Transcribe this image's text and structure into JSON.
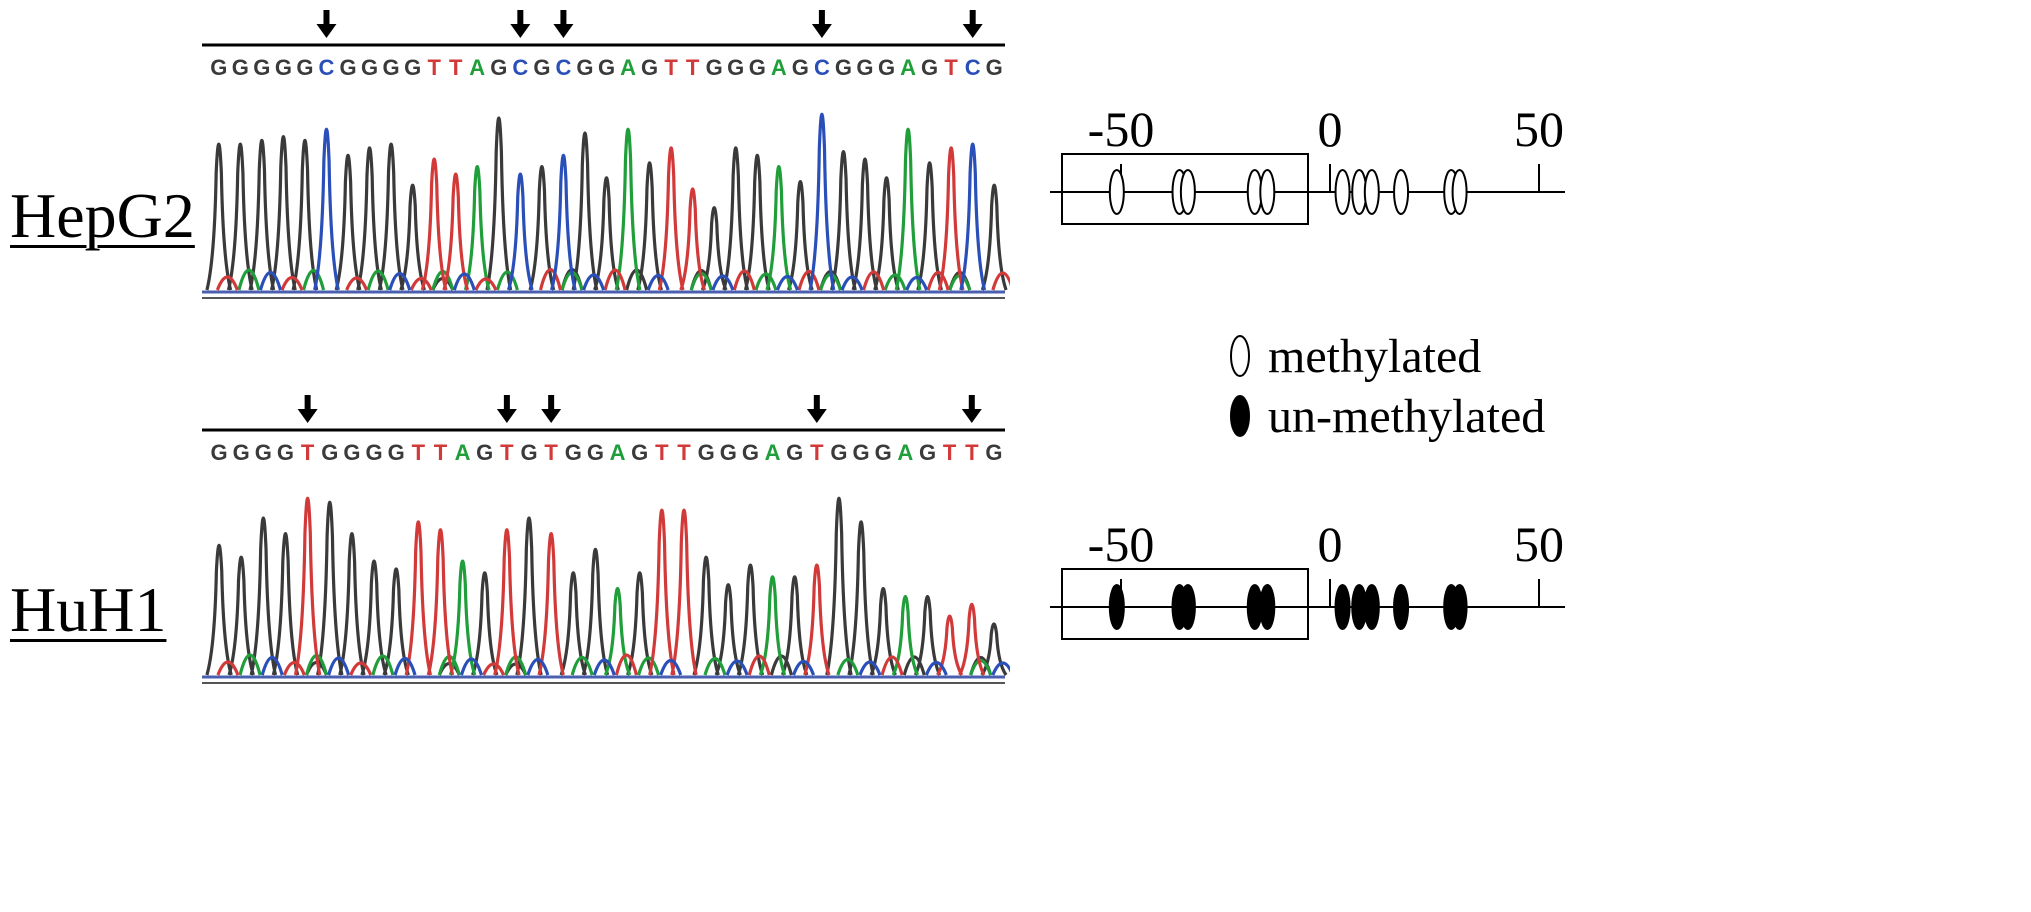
{
  "colors": {
    "G": "#3a3a3a",
    "A": "#1f9e3a",
    "T": "#d23a3a",
    "C": "#2a4fb8",
    "axis": "#000000"
  },
  "panels": [
    {
      "name": "HepG2",
      "bases": [
        "G",
        "G",
        "G",
        "G",
        "G",
        "C",
        "G",
        "G",
        "G",
        "G",
        "T",
        "T",
        "A",
        "G",
        "C",
        "G",
        "C",
        "G",
        "G",
        "A",
        "G",
        "T",
        "T",
        "G",
        "G",
        "G",
        "A",
        "G",
        "C",
        "G",
        "G",
        "G",
        "A",
        "G",
        "T",
        "C",
        "G"
      ],
      "arrow_positions": [
        5,
        14,
        16,
        28,
        35
      ],
      "peak_heights": [
        0.78,
        0.78,
        0.8,
        0.82,
        0.8,
        0.86,
        0.72,
        0.76,
        0.78,
        0.56,
        0.7,
        0.62,
        0.66,
        0.92,
        0.62,
        0.66,
        0.72,
        0.84,
        0.6,
        0.86,
        0.68,
        0.76,
        0.54,
        0.44,
        0.76,
        0.72,
        0.66,
        0.58,
        0.94,
        0.74,
        0.7,
        0.6,
        0.86,
        0.68,
        0.76,
        0.78,
        0.56
      ],
      "methylated": true
    },
    {
      "name": "HuH1",
      "bases": [
        "G",
        "G",
        "G",
        "G",
        "T",
        "G",
        "G",
        "G",
        "G",
        "T",
        "T",
        "A",
        "G",
        "T",
        "G",
        "T",
        "G",
        "G",
        "A",
        "G",
        "T",
        "T",
        "G",
        "G",
        "G",
        "A",
        "G",
        "T",
        "G",
        "G",
        "G",
        "A",
        "G",
        "T",
        "T",
        "G"
      ],
      "arrow_positions": [
        4,
        13,
        15,
        27,
        34
      ],
      "peak_heights": [
        0.66,
        0.6,
        0.8,
        0.72,
        0.9,
        0.88,
        0.72,
        0.58,
        0.54,
        0.78,
        0.74,
        0.58,
        0.52,
        0.74,
        0.8,
        0.72,
        0.52,
        0.64,
        0.44,
        0.52,
        0.84,
        0.84,
        0.6,
        0.46,
        0.56,
        0.5,
        0.5,
        0.56,
        0.9,
        0.78,
        0.44,
        0.4,
        0.4,
        0.3,
        0.36,
        0.26
      ],
      "methylated": false
    }
  ],
  "methylation_map": {
    "axis_labels": [
      "-50",
      "0",
      "50"
    ],
    "cpg_sites": [
      -51,
      -36,
      -34,
      -18,
      -15,
      3,
      7,
      10,
      17,
      29,
      31
    ]
  },
  "legend": {
    "methylated": "methylated",
    "unmethylated": "un-methylated"
  }
}
